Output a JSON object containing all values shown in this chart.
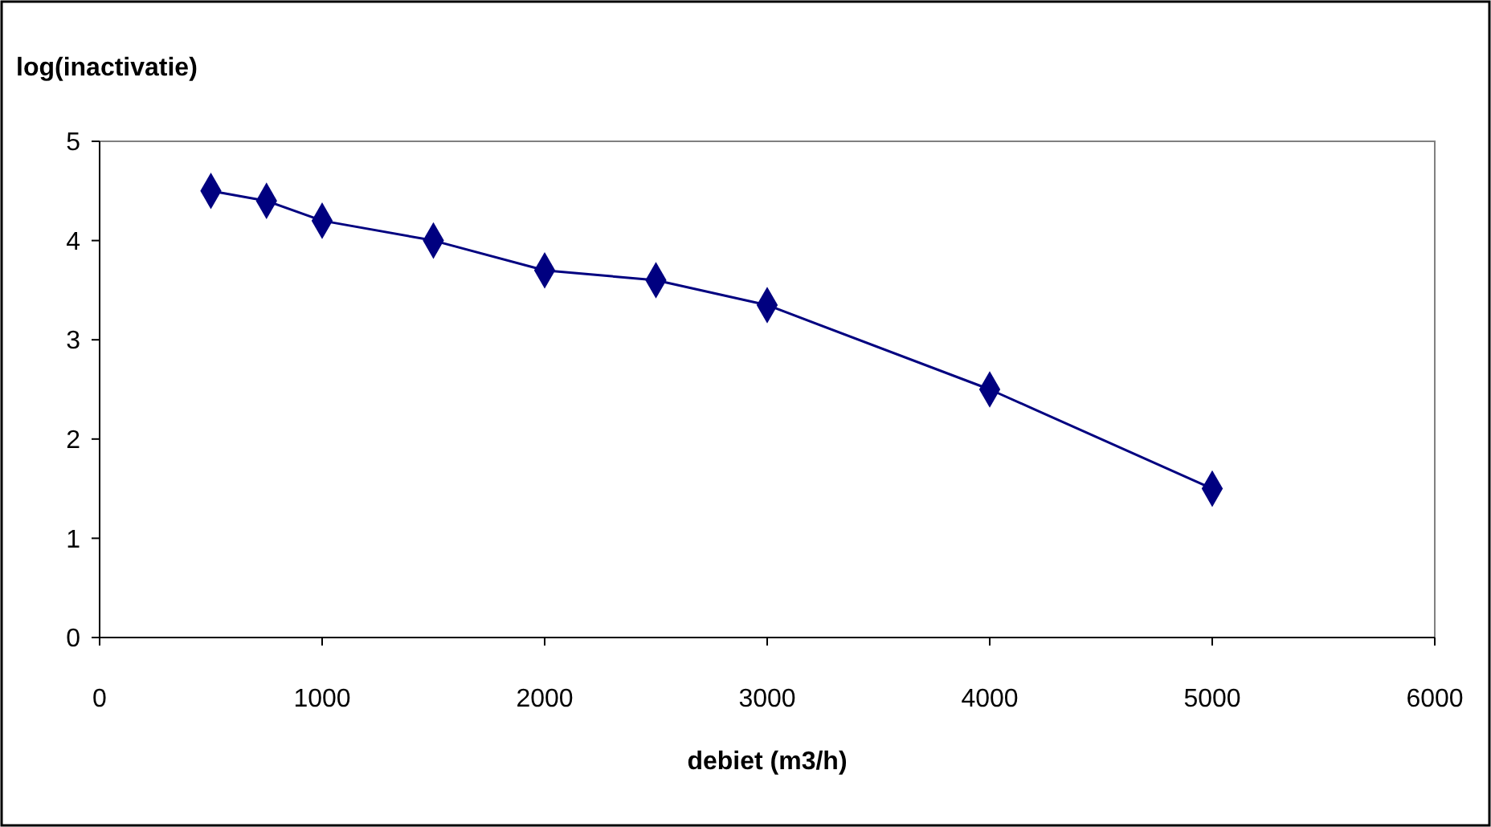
{
  "chart_data": {
    "type": "line",
    "xlabel": "debiet (m3/h)",
    "ylabel": "log(inactivatie)",
    "x": [
      500,
      750,
      1000,
      1500,
      2000,
      2500,
      3000,
      4000,
      5000
    ],
    "series": [
      {
        "color": "#000080",
        "values": [
          4.5,
          4.4,
          4.2,
          4.0,
          3.7,
          3.6,
          3.35,
          2.5,
          1.5
        ]
      }
    ],
    "xlim": [
      0,
      6000
    ],
    "xticks": [
      0,
      1000,
      2000,
      3000,
      4000,
      5000,
      6000
    ],
    "ylim": [
      0,
      5
    ],
    "yticks": [
      0,
      1,
      2,
      3,
      4,
      5
    ],
    "marker": "diamond",
    "line_style": "solid"
  }
}
